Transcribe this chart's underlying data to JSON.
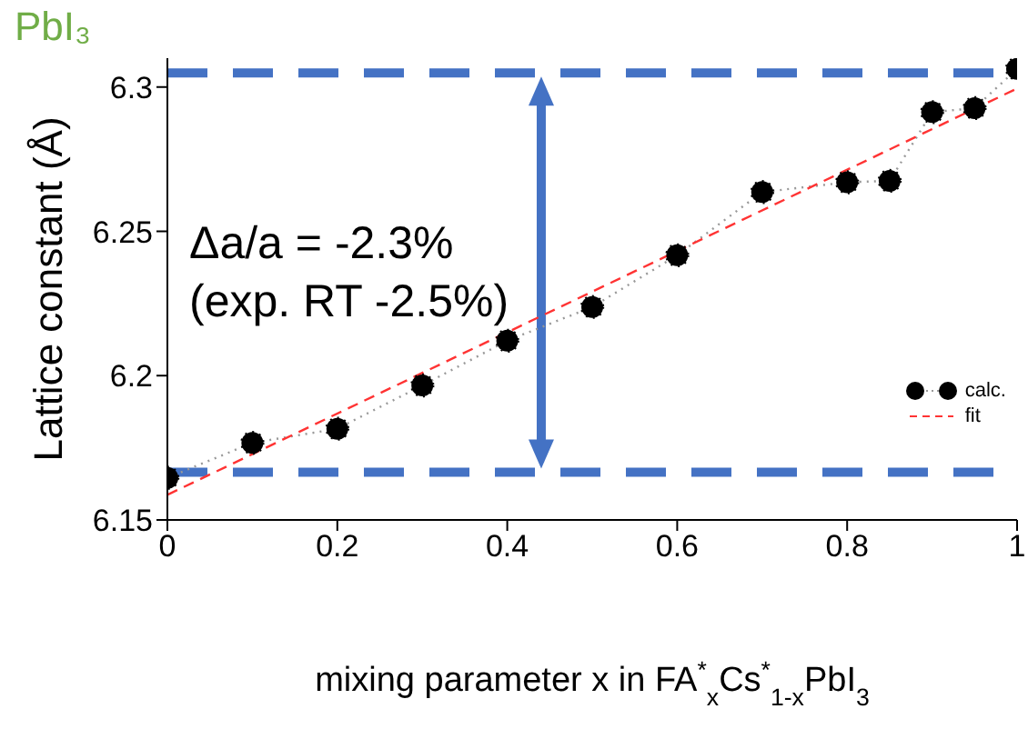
{
  "chart_data": {
    "type": "scatter",
    "title": "PbI₃",
    "xlabel": "mixing parameter x  in FA$^{*}$$_{x}$Cs$^{*}$$_{1-x}$PbI$_{3}$",
    "ylabel": "Lattice constant (Å)",
    "annotations": [
      "Δa/a = -2.3%",
      "(exp. RT -2.5%)"
    ],
    "x": [
      0,
      0.1,
      0.2,
      0.3,
      0.4,
      0.5,
      0.6,
      0.7,
      0.8,
      0.85,
      0.9,
      0.95,
      1.0
    ],
    "series": [
      {
        "name": "calc.",
        "type": "line",
        "color": "#000000",
        "marker": "circle",
        "line_style": "dotted",
        "values": [
          6.1646,
          6.1767,
          6.1816,
          6.1966,
          6.2121,
          6.2238,
          6.2417,
          6.2636,
          6.267,
          6.2675,
          6.2913,
          6.2927,
          6.3063
        ]
      },
      {
        "name": "fit",
        "type": "line",
        "color": "#ff3333",
        "marker": "none",
        "line_style": "dashed",
        "x": [
          0,
          1
        ],
        "values": [
          6.1587,
          6.2995
        ]
      }
    ],
    "ref_lines": [
      {
        "axis": "y",
        "value": 6.3049,
        "color": "#4472c4",
        "line_style": "dashed"
      },
      {
        "axis": "y",
        "value": 6.1665,
        "color": "#4472c4",
        "line_style": "dashed"
      }
    ],
    "xlim": [
      0,
      1
    ],
    "xticks": [
      0,
      0.2,
      0.4,
      0.6,
      0.8,
      1
    ],
    "ylim": [
      6.15,
      6.31
    ],
    "yticks": [
      6.15,
      6.2,
      6.25,
      6.3
    ],
    "grid": false,
    "legend": "right"
  }
}
